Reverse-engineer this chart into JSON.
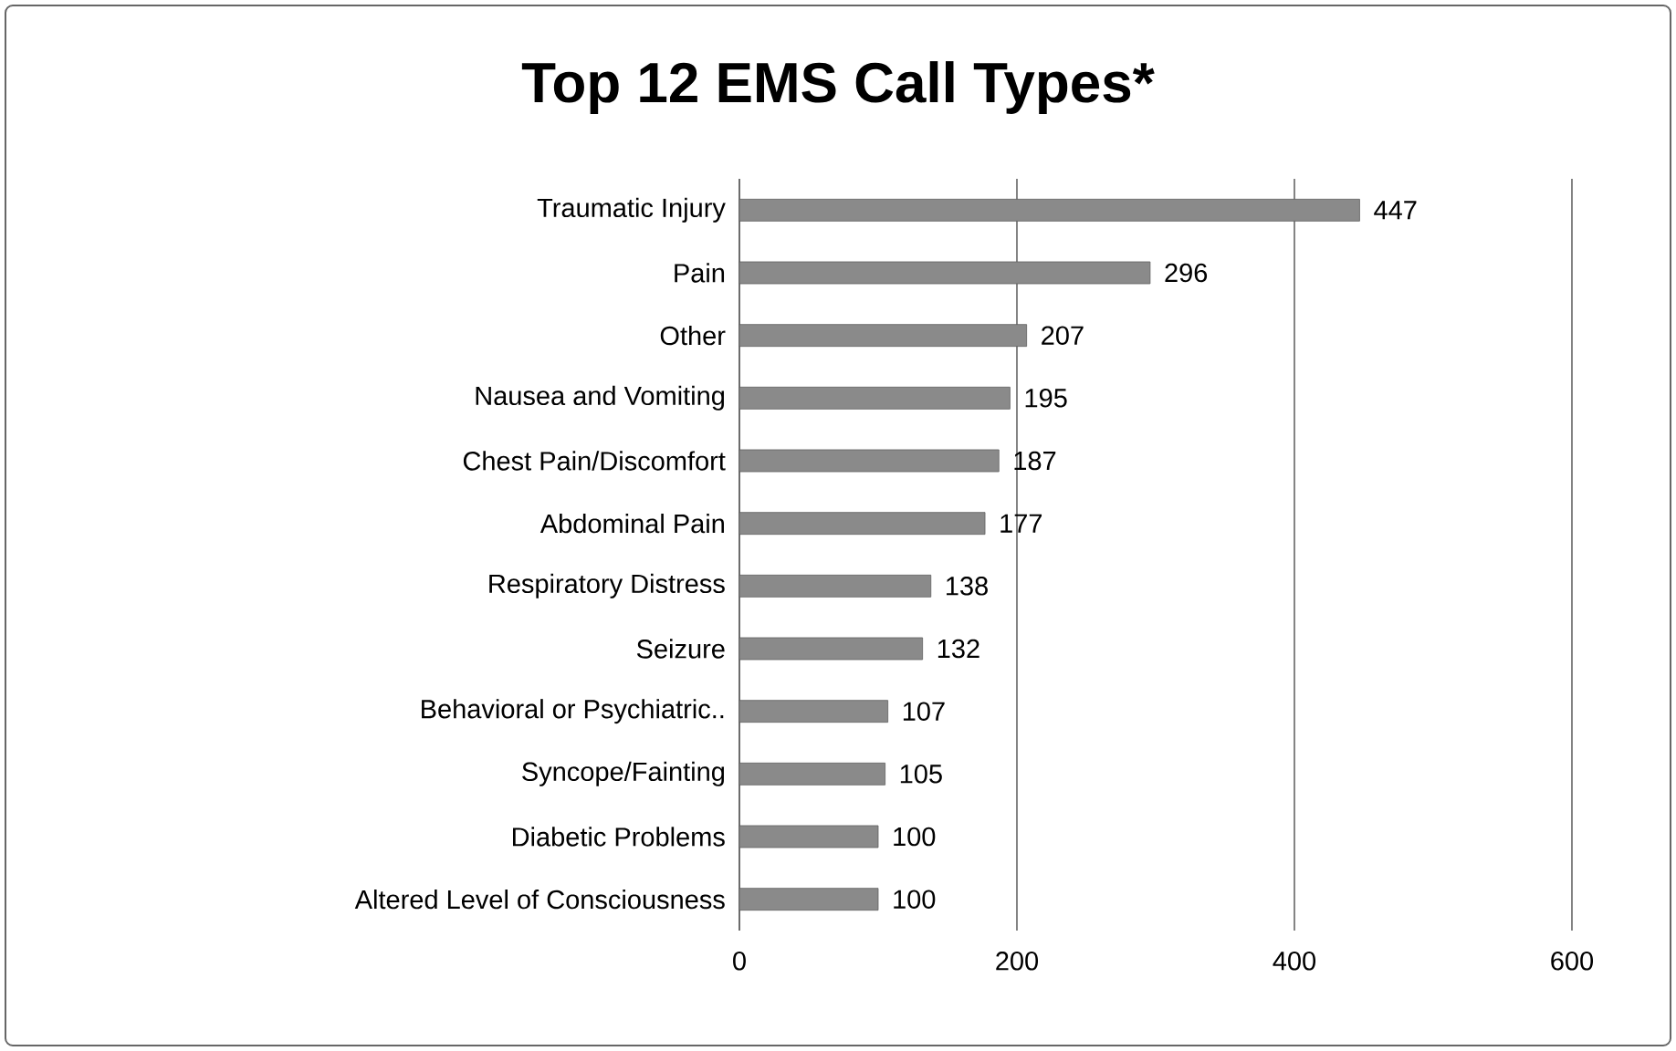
{
  "chart_data": {
    "type": "bar",
    "orientation": "horizontal",
    "title": "Top 12 EMS Call Types*",
    "categories": [
      "Traumatic Injury",
      "Pain",
      "Other",
      "Nausea and Vomiting",
      "Chest Pain/Discomfort",
      "Abdominal Pain",
      "Respiratory Distress",
      "Seizure",
      "Behavioral or Psychiatric..",
      "Syncope/Fainting",
      "Diabetic Problems",
      "Altered Level of Consciousness"
    ],
    "values": [
      447,
      296,
      207,
      195,
      187,
      177,
      138,
      132,
      107,
      105,
      100,
      100
    ],
    "color": "#8a8a8a",
    "xlim": [
      0,
      600
    ],
    "xticks": [
      0,
      200,
      400,
      600
    ],
    "grid": "x",
    "data_labels": true
  }
}
